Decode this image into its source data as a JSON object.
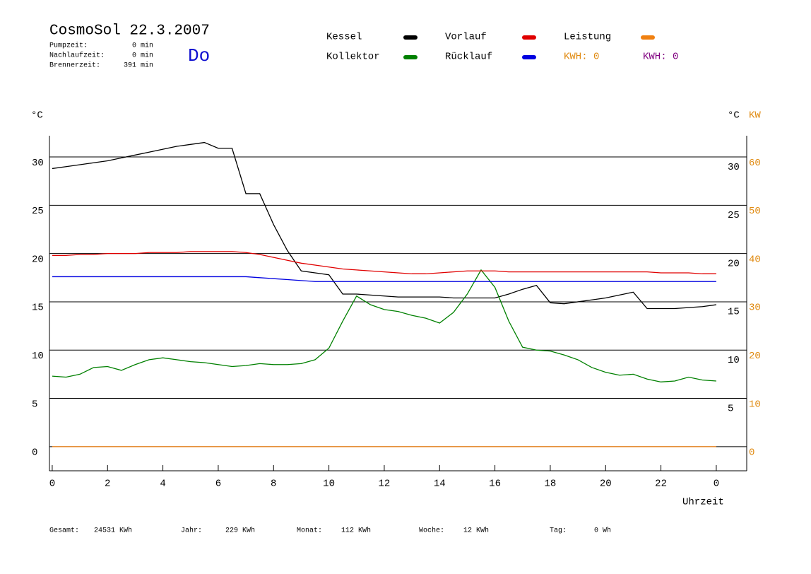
{
  "chart_data": {
    "type": "line",
    "title": "CosmoSol 22.3.2007",
    "info": [
      [
        "Pumpzeit:",
        "0 min"
      ],
      [
        "Nachlaufzeit:",
        "0 min"
      ],
      [
        "Brennerzeit:",
        "391 min"
      ]
    ],
    "day": "Do",
    "kwh_labels": [
      {
        "text": "KWH: 0",
        "color": "#e08a10"
      },
      {
        "text": "KWH: 0",
        "color": "#800080"
      }
    ],
    "y_unit": "°C",
    "y2_units": [
      "°C",
      "KW"
    ],
    "xlabel": "Uhrzeit",
    "x": [
      0,
      0.5,
      1,
      1.5,
      2,
      2.5,
      3,
      3.5,
      4,
      4.5,
      5,
      5.5,
      6,
      6.5,
      7,
      7.5,
      8,
      8.5,
      9,
      9.5,
      10,
      10.5,
      11,
      11.5,
      12,
      12.5,
      13,
      13.5,
      14,
      14.5,
      15,
      15.5,
      16,
      16.5,
      17,
      17.5,
      18,
      18.5,
      19,
      19.5,
      20,
      20.5,
      21,
      21.5,
      22,
      22.5,
      23,
      23.5,
      24
    ],
    "xlim": [
      -0.1,
      25.1
    ],
    "xticks": [
      0,
      2,
      4,
      6,
      8,
      10,
      12,
      14,
      16,
      18,
      20,
      22,
      {
        "value": 24,
        "label": "0"
      }
    ],
    "ylim": [
      -2.5,
      32.2
    ],
    "yticks": [
      0,
      5,
      10,
      15,
      20,
      25,
      30
    ],
    "yticks_right": [
      5,
      10,
      15,
      20,
      25,
      30
    ],
    "y2lim": [
      -5,
      64.4
    ],
    "y2ticks": [
      0,
      10,
      20,
      30,
      40,
      50,
      60
    ],
    "grid": true,
    "series": [
      {
        "name": "Kessel",
        "color": "#000000",
        "values": [
          28.8,
          29.0,
          29.2,
          29.4,
          29.6,
          29.9,
          30.2,
          30.5,
          30.8,
          31.1,
          31.3,
          31.5,
          30.9,
          30.9,
          26.2,
          26.2,
          23.0,
          20.3,
          18.2,
          18.0,
          17.8,
          15.8,
          15.8,
          15.7,
          15.6,
          15.5,
          15.5,
          15.5,
          15.5,
          15.4,
          15.4,
          15.4,
          15.4,
          15.8,
          16.3,
          16.7,
          14.9,
          14.8,
          15.0,
          15.2,
          15.4,
          15.7,
          16.0,
          14.3,
          14.3,
          14.3,
          14.4,
          14.5,
          14.7
        ]
      },
      {
        "name": "Kollektor",
        "color": "#008000",
        "values": [
          7.3,
          7.2,
          7.5,
          8.2,
          8.3,
          7.9,
          8.5,
          9.0,
          9.2,
          9.0,
          8.8,
          8.7,
          8.5,
          8.3,
          8.4,
          8.6,
          8.5,
          8.5,
          8.6,
          9.0,
          10.2,
          13.0,
          15.6,
          14.7,
          14.2,
          14.0,
          13.6,
          13.3,
          12.8,
          13.9,
          15.8,
          18.3,
          16.5,
          13.0,
          10.3,
          10.0,
          9.9,
          9.5,
          9.0,
          8.2,
          7.7,
          7.4,
          7.5,
          7.0,
          6.7,
          6.8,
          7.2,
          6.9,
          6.8
        ]
      },
      {
        "name": "Vorlauf",
        "color": "#e00000",
        "values": [
          19.8,
          19.8,
          19.9,
          19.9,
          20.0,
          20.0,
          20.0,
          20.1,
          20.1,
          20.1,
          20.2,
          20.2,
          20.2,
          20.2,
          20.1,
          19.9,
          19.6,
          19.3,
          19.0,
          18.8,
          18.6,
          18.4,
          18.3,
          18.2,
          18.1,
          18.0,
          17.9,
          17.9,
          18.0,
          18.1,
          18.2,
          18.2,
          18.2,
          18.1,
          18.1,
          18.1,
          18.1,
          18.1,
          18.1,
          18.1,
          18.1,
          18.1,
          18.1,
          18.1,
          18.0,
          18.0,
          18.0,
          17.9,
          17.9
        ]
      },
      {
        "name": "Rücklauf",
        "color": "#0000e0",
        "values": [
          17.6,
          17.6,
          17.6,
          17.6,
          17.6,
          17.6,
          17.6,
          17.6,
          17.6,
          17.6,
          17.6,
          17.6,
          17.6,
          17.6,
          17.6,
          17.5,
          17.4,
          17.3,
          17.2,
          17.1,
          17.1,
          17.1,
          17.1,
          17.1,
          17.1,
          17.1,
          17.1,
          17.1,
          17.1,
          17.1,
          17.1,
          17.1,
          17.1,
          17.1,
          17.1,
          17.1,
          17.1,
          17.1,
          17.1,
          17.1,
          17.1,
          17.1,
          17.1,
          17.1,
          17.1,
          17.1,
          17.1,
          17.1,
          17.1
        ]
      },
      {
        "name": "Leistung",
        "color": "#f08010",
        "axis": "y2",
        "values": [
          0,
          0,
          0,
          0,
          0,
          0,
          0,
          0,
          0,
          0,
          0,
          0,
          0,
          0,
          0,
          0,
          0,
          0,
          0,
          0,
          0,
          0,
          0,
          0,
          0,
          0,
          0,
          0,
          0,
          0,
          0,
          0,
          0,
          0,
          0,
          0,
          0,
          0,
          0,
          0,
          0,
          0,
          0,
          0,
          0,
          0,
          0,
          0,
          0
        ]
      }
    ],
    "totals": [
      [
        "Gesamt:",
        "24531 KWh"
      ],
      [
        "Jahr:",
        "229 KWh"
      ],
      [
        "Monat:",
        "112 KWh"
      ],
      [
        "Woche:",
        "12 KWh"
      ],
      [
        "Tag:",
        "0 Wh"
      ]
    ]
  }
}
